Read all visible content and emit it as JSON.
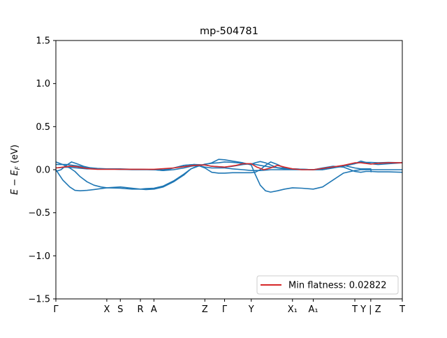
{
  "chart_data": {
    "type": "line",
    "title": "mp-504781",
    "xlabel": "",
    "ylabel": "E − E_F (eV)",
    "ylim": [
      -1.5,
      1.5
    ],
    "yticks": [
      1.5,
      1.0,
      0.5,
      0.0,
      -0.5,
      -1.0,
      -1.5
    ],
    "ytick_labels": [
      "1.5",
      "1.0",
      "0.5",
      "0.0",
      "−0.5",
      "−1.0",
      "−1.5"
    ],
    "xlim": [
      0,
      100
    ],
    "xticks": [
      {
        "x": 0,
        "label": "Γ"
      },
      {
        "x": 14.7,
        "label": "X"
      },
      {
        "x": 18.6,
        "label": "S"
      },
      {
        "x": 24.4,
        "label": "R"
      },
      {
        "x": 28.3,
        "label": "A"
      },
      {
        "x": 43.0,
        "label": "Z"
      },
      {
        "x": 48.7,
        "label": "Γ"
      },
      {
        "x": 56.4,
        "label": "Y"
      },
      {
        "x": 68.3,
        "label": "X₁"
      },
      {
        "x": 74.3,
        "label": "A₁"
      },
      {
        "x": 86.3,
        "label": "T"
      },
      {
        "x": 90.9,
        "label": "Y | Z"
      },
      {
        "x": 100,
        "label": "T"
      }
    ],
    "series": [
      {
        "name": "band-1",
        "color": "#1f77b4",
        "x": [
          0,
          2,
          4,
          5.5,
          7,
          9,
          11,
          13,
          14.7,
          18.6,
          22,
          24.4,
          26,
          28.3,
          31,
          34,
          37,
          39,
          41,
          43,
          45,
          47,
          48.7,
          51,
          54,
          56.4,
          57.5,
          59,
          60.5,
          62,
          64,
          66,
          68.3,
          71,
          74.3,
          77,
          80,
          83,
          86.3,
          88,
          90.9,
          93,
          96,
          100
        ],
        "y": [
          0.0,
          -0.12,
          -0.2,
          -0.24,
          -0.245,
          -0.24,
          -0.23,
          -0.22,
          -0.21,
          -0.2,
          -0.215,
          -0.225,
          -0.23,
          -0.225,
          -0.2,
          -0.14,
          -0.06,
          0.01,
          0.045,
          0.06,
          0.08,
          0.12,
          0.115,
          0.1,
          0.08,
          0.055,
          -0.05,
          -0.18,
          -0.245,
          -0.26,
          -0.245,
          -0.225,
          -0.21,
          -0.215,
          -0.225,
          -0.2,
          -0.12,
          -0.04,
          -0.01,
          0.0,
          0.0,
          0.0,
          0.0,
          0.0
        ]
      },
      {
        "name": "band-2",
        "color": "#1f77b4",
        "x": [
          0,
          2,
          4,
          5.5,
          7,
          9,
          11,
          13,
          14.7,
          18.6,
          22,
          24.4,
          26,
          28.3,
          31,
          34,
          37,
          39,
          41,
          43,
          45,
          47,
          48.7,
          51,
          54,
          56.4,
          57.5,
          59,
          60.5,
          62,
          64,
          66,
          68.3,
          71,
          74.3,
          77,
          80,
          83,
          86.3,
          88,
          90.9,
          93,
          96,
          100
        ],
        "y": [
          0.09,
          0.06,
          0.02,
          -0.02,
          -0.08,
          -0.14,
          -0.18,
          -0.2,
          -0.21,
          -0.215,
          -0.225,
          -0.225,
          -0.22,
          -0.215,
          -0.19,
          -0.13,
          -0.05,
          0.01,
          0.04,
          0.065,
          0.075,
          0.08,
          0.09,
          0.085,
          0.075,
          0.065,
          0.08,
          0.095,
          0.08,
          0.055,
          0.02,
          0.01,
          0.01,
          0.005,
          0.0,
          0.0,
          0.02,
          0.04,
          0.07,
          0.085,
          0.085,
          0.08,
          0.085,
          0.08
        ]
      },
      {
        "name": "band-3",
        "color": "#1f77b4",
        "x": [
          0,
          1.5,
          3,
          4.5,
          6,
          8,
          10,
          12,
          14.7,
          18.6,
          22,
          24.4,
          26,
          28.3,
          31,
          34,
          37,
          39,
          41,
          43,
          45,
          47,
          48.7,
          51,
          54,
          56.4,
          57.5,
          59,
          60.5,
          62,
          64,
          66,
          68.3,
          71,
          74.3,
          77,
          80,
          83,
          86.3,
          88,
          90.9,
          93,
          96,
          100
        ],
        "y": [
          -0.02,
          0.0,
          0.05,
          0.09,
          0.07,
          0.04,
          0.02,
          0.01,
          0.01,
          0.005,
          0.0,
          0.0,
          0.0,
          0.0,
          -0.01,
          0.0,
          0.02,
          0.04,
          0.05,
          0.02,
          -0.03,
          -0.04,
          -0.04,
          -0.035,
          -0.035,
          -0.035,
          -0.03,
          0.0,
          0.05,
          0.09,
          0.06,
          0.02,
          0.01,
          0.005,
          0.0,
          0.01,
          0.03,
          0.05,
          0.07,
          0.1,
          0.07,
          0.06,
          0.07,
          0.08
        ]
      },
      {
        "name": "band-4",
        "color": "#1f77b4",
        "x": [
          0,
          3,
          6,
          9,
          12,
          14.7,
          18.6,
          22,
          24.4,
          28.3,
          31,
          34,
          37,
          40,
          43,
          45,
          48.7,
          51,
          54,
          56.4,
          59,
          62,
          65,
          68.3,
          71,
          74.3,
          77,
          80,
          83,
          86.3,
          88,
          89.5,
          90.9,
          93,
          96,
          100
        ],
        "y": [
          0.02,
          0.03,
          0.02,
          0.01,
          0.01,
          0.01,
          0.01,
          0.005,
          0.005,
          0.0,
          -0.01,
          0.02,
          0.05,
          0.06,
          0.03,
          0.02,
          0.02,
          0.01,
          0.0,
          -0.01,
          -0.01,
          0.0,
          0.0,
          0.0,
          0.0,
          0.0,
          0.02,
          0.04,
          0.03,
          -0.02,
          -0.03,
          -0.02,
          -0.02,
          -0.025,
          -0.025,
          -0.03
        ]
      },
      {
        "name": "band-5",
        "color": "#1f77b4",
        "x": [
          0,
          3,
          6,
          9,
          12,
          14.7,
          18.6,
          22,
          24.4,
          28.3,
          31,
          34,
          37,
          40,
          43,
          45,
          48.7,
          51,
          54,
          56.4,
          59,
          62,
          65,
          68.3,
          71,
          74.3,
          77,
          80,
          83,
          86.3,
          88,
          89.5,
          90.9,
          91.0
        ],
        "y": [
          0.06,
          0.06,
          0.045,
          0.025,
          0.015,
          0.01,
          0.005,
          0.005,
          0.005,
          0.0,
          0.0,
          0.02,
          0.05,
          0.06,
          0.055,
          0.04,
          0.03,
          0.04,
          0.06,
          0.07,
          0.05,
          0.03,
          0.02,
          0.01,
          0.005,
          0.0,
          0.0,
          0.02,
          0.05,
          0.02,
          0.01,
          0.01,
          0.01,
          -0.03
        ]
      },
      {
        "name": "Min flatness: 0.02822",
        "color": "#d62728",
        "x": [
          0,
          2,
          4,
          6,
          8,
          10,
          12,
          14.7,
          18.6,
          24.4,
          28.3,
          34,
          40,
          43,
          45,
          48.7,
          52,
          54,
          56.4,
          58,
          60,
          62,
          64,
          66,
          68.3,
          71,
          74.3,
          78,
          83,
          86.3,
          88,
          90.9,
          93,
          96,
          100
        ],
        "y": [
          0.02,
          0.03,
          0.04,
          0.035,
          0.02,
          0.01,
          0.005,
          0.005,
          0.005,
          0.005,
          0.005,
          0.02,
          0.05,
          0.055,
          0.04,
          0.03,
          0.05,
          0.07,
          0.07,
          0.03,
          0.0,
          0.02,
          0.05,
          0.03,
          0.01,
          0.0,
          0.0,
          0.02,
          0.05,
          0.08,
          0.08,
          0.065,
          0.075,
          0.08,
          0.08
        ]
      }
    ],
    "legend": {
      "label": "Min flatness: 0.02822",
      "color": "#d62728",
      "position": "lower-right"
    }
  }
}
